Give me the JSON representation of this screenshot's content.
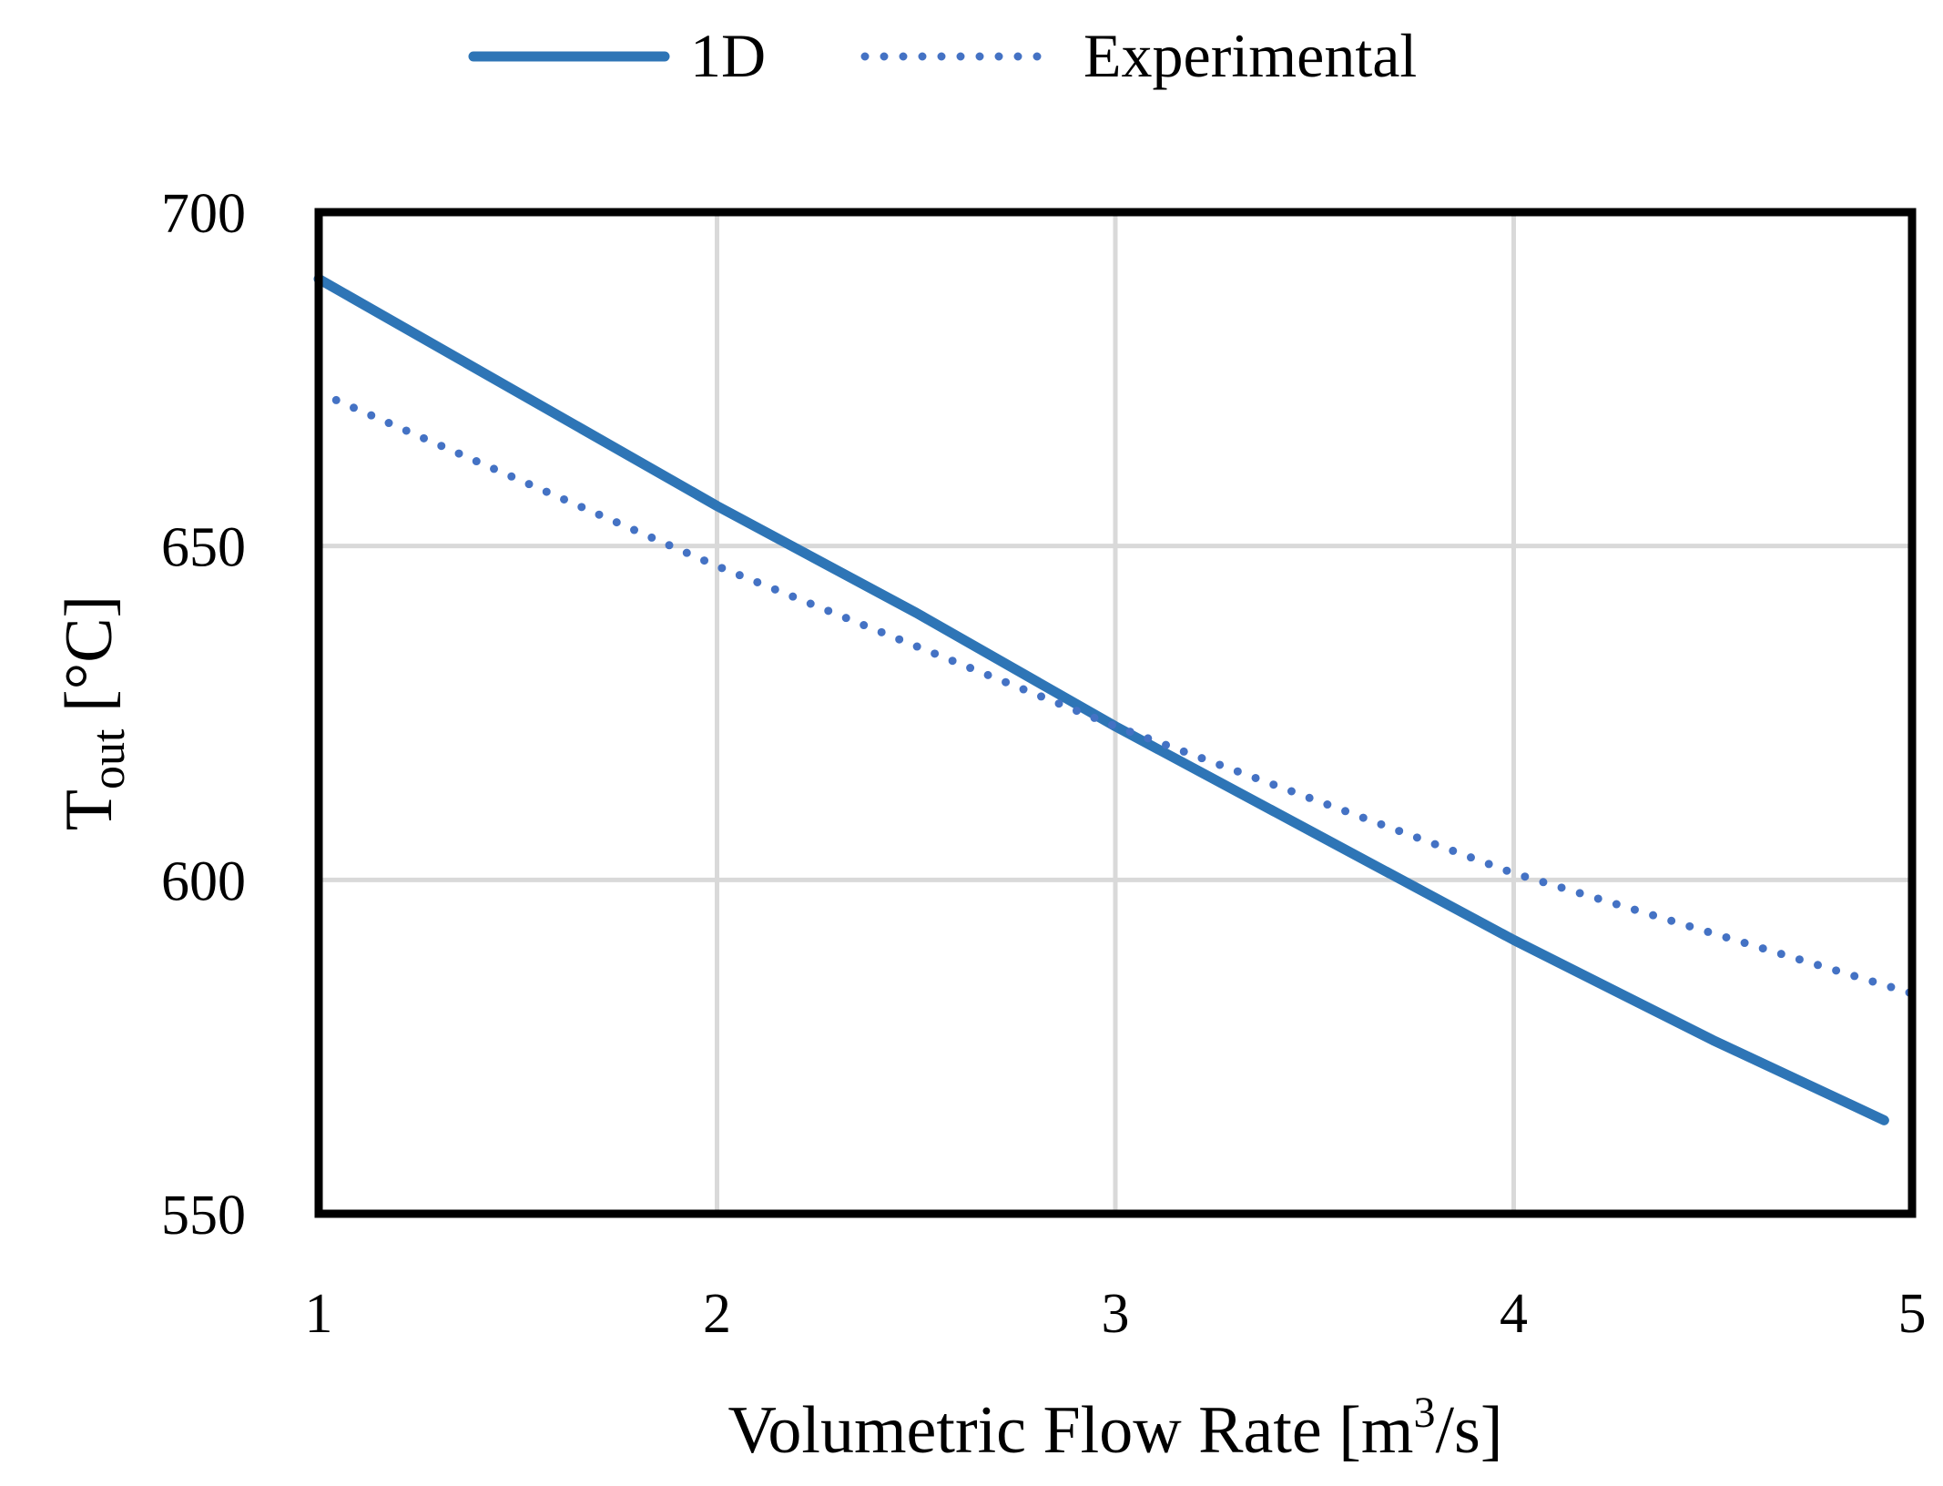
{
  "chart_data": {
    "type": "line",
    "title": "",
    "xlabel_main": "Volumetric Flow Rate [m",
    "xlabel_sup": "3",
    "xlabel_end": "/s]",
    "ylabel_main": "T",
    "ylabel_sub": "out",
    "ylabel_end": " [°C]",
    "xlim": [
      1,
      5
    ],
    "ylim": [
      550,
      700
    ],
    "x_ticks": [
      "1",
      "2",
      "3",
      "4",
      "5"
    ],
    "y_ticks": [
      "550",
      "600",
      "650",
      "700"
    ],
    "grid": true,
    "legend_position": "top",
    "series": [
      {
        "name": "1D",
        "style": "solid",
        "color": "#2e75b6",
        "x": [
          1.0,
          1.5,
          2.0,
          2.5,
          3.0,
          3.5,
          4.0,
          4.5,
          4.93
        ],
        "y": [
          690,
          673,
          656,
          640,
          623,
          607,
          591,
          576,
          564
        ]
      },
      {
        "name": "Experimental",
        "style": "dotted",
        "color": "#4472c4",
        "x": [
          1.0,
          2.0,
          3.0,
          4.0,
          5.0
        ],
        "y": [
          673,
          647,
          623,
          601,
          583
        ]
      }
    ]
  }
}
